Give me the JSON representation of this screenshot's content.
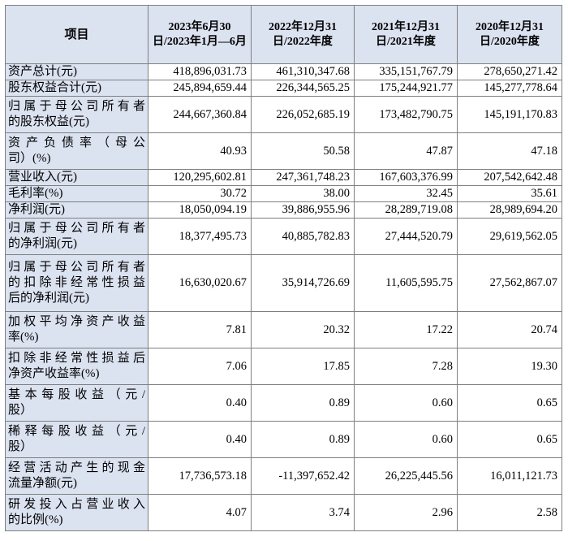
{
  "table": {
    "headers": [
      "项目",
      "2023年6月30日/2023年1月—6月",
      "2022年12月31日/2022年度",
      "2021年12月31日/2021年度",
      "2020年12月31日/2020年度"
    ],
    "rows": [
      {
        "label": [
          "资产总计(元)"
        ],
        "values": [
          "418,896,031.73",
          "461,310,347.68",
          "335,151,767.79",
          "278,650,271.42"
        ]
      },
      {
        "label": [
          "股东权益合计(元)"
        ],
        "values": [
          "245,894,659.44",
          "226,344,565.25",
          "175,244,921.77",
          "145,277,778.64"
        ]
      },
      {
        "label": [
          "归属于母公司所有者",
          "的股东权益(元)"
        ],
        "values": [
          "244,667,360.84",
          "226,052,685.19",
          "173,482,790.75",
          "145,191,170.83"
        ]
      },
      {
        "label": [
          "资产负债率（母公",
          "司）(%)"
        ],
        "values": [
          "40.93",
          "50.58",
          "47.87",
          "47.18"
        ]
      },
      {
        "label": [
          "营业收入(元)"
        ],
        "values": [
          "120,295,602.81",
          "247,361,748.23",
          "167,603,376.99",
          "207,542,642.48"
        ]
      },
      {
        "label": [
          "毛利率(%)"
        ],
        "values": [
          "30.72",
          "38.00",
          "32.45",
          "35.61"
        ]
      },
      {
        "label": [
          "净利润(元)"
        ],
        "values": [
          "18,050,094.19",
          "39,886,955.96",
          "28,289,719.08",
          "28,989,694.20"
        ]
      },
      {
        "label": [
          "归属于母公司所有者",
          "的净利润(元)"
        ],
        "values": [
          "18,377,495.73",
          "40,885,782.83",
          "27,444,520.79",
          "29,619,562.05"
        ]
      },
      {
        "label": [
          "归属于母公司所有者",
          "的扣除非经常性损益",
          "后的净利润(元)"
        ],
        "values": [
          "16,630,020.67",
          "35,914,726.69",
          "11,605,595.75",
          "27,562,867.07"
        ]
      },
      {
        "label": [
          "加权平均净资产收益",
          "率(%)"
        ],
        "values": [
          "7.81",
          "20.32",
          "17.22",
          "20.74"
        ]
      },
      {
        "label": [
          "扣除非经常性损益后",
          "净资产收益率(%)"
        ],
        "values": [
          "7.06",
          "17.85",
          "7.28",
          "19.30"
        ]
      },
      {
        "label": [
          "基本每股收益（元/",
          "股）"
        ],
        "values": [
          "0.40",
          "0.89",
          "0.60",
          "0.65"
        ]
      },
      {
        "label": [
          "稀释每股收益（元/",
          "股）"
        ],
        "values": [
          "0.40",
          "0.89",
          "0.60",
          "0.65"
        ]
      },
      {
        "label": [
          "经营活动产生的现金",
          "流量净额(元)"
        ],
        "values": [
          "17,736,573.18",
          "-11,397,652.42",
          "26,225,445.56",
          "16,011,121.73"
        ]
      },
      {
        "label": [
          "研发投入占营业收入",
          "的比例(%)"
        ],
        "values": [
          "4.07",
          "3.74",
          "2.96",
          "2.58"
        ]
      }
    ]
  }
}
